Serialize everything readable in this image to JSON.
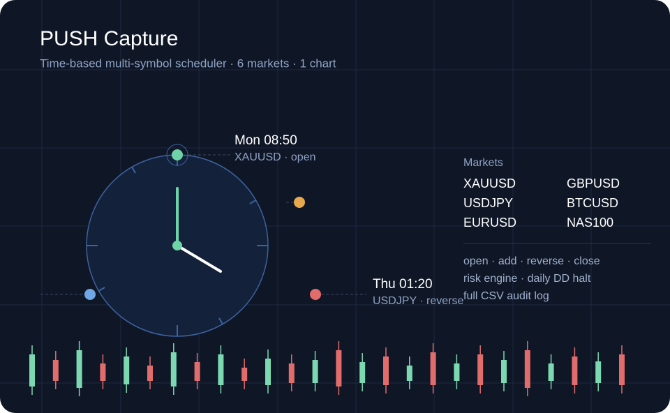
{
  "header": {
    "title": "PUSH Capture",
    "subtitle": "Time-based multi-symbol scheduler · 6 markets · 1 chart"
  },
  "events": [
    {
      "time": "Mon 08:50",
      "label": "XAUUSD · open"
    },
    {
      "time": "Thu 01:20",
      "label": "USDJPY · reverse"
    }
  ],
  "markets": {
    "heading": "Markets",
    "items": [
      "XAUUSD",
      "GBPUSD",
      "USDJPY",
      "BTCUSD",
      "EURUSD",
      "NAS100"
    ]
  },
  "features": [
    "open · add · reverse · close",
    "risk engine · daily DD halt",
    "full CSV audit log"
  ]
}
